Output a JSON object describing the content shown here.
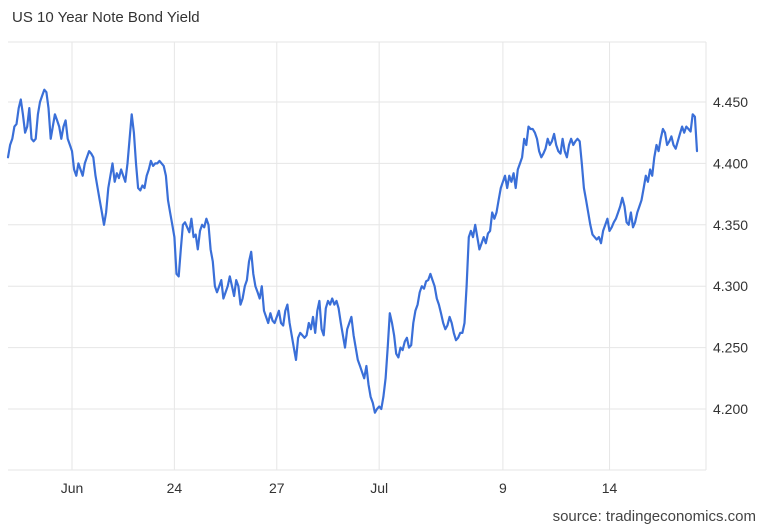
{
  "header": {
    "title": "US 10 Year Note Bond Yield"
  },
  "footer": {
    "source": "source: tradingeconomics.com"
  },
  "chart_data": {
    "type": "line",
    "title": "US 10 Year Note Bond Yield",
    "xlabel": "",
    "ylabel": "",
    "ylim": [
      4.15,
      4.475
    ],
    "yticks": [
      "4.450",
      "4.400",
      "4.350",
      "4.300",
      "4.250",
      "4.200"
    ],
    "ytick_values": [
      4.45,
      4.4,
      4.35,
      4.3,
      4.25,
      4.2
    ],
    "xticks": [
      "Jun",
      "24",
      "27",
      "Jul",
      "9",
      "14"
    ],
    "xtick_index": [
      30,
      78,
      126,
      174,
      232,
      282
    ],
    "grid": true,
    "legend": "none",
    "color": "#3a6fd8",
    "series": [
      {
        "values": [
          4.405,
          4.415,
          4.42,
          4.43,
          4.432,
          4.445,
          4.452,
          4.44,
          4.425,
          4.43,
          4.445,
          4.42,
          4.418,
          4.42,
          4.44,
          4.45,
          4.455,
          4.46,
          4.458,
          4.445,
          4.42,
          4.43,
          4.44,
          4.435,
          4.43,
          4.42,
          4.43,
          4.435,
          4.42,
          4.415,
          4.41,
          4.395,
          4.39,
          4.4,
          4.395,
          4.39,
          4.4,
          4.405,
          4.41,
          4.408,
          4.405,
          4.39,
          4.38,
          4.37,
          4.36,
          4.35,
          4.36,
          4.38,
          4.39,
          4.4,
          4.385,
          4.392,
          4.388,
          4.395,
          4.39,
          4.385,
          4.4,
          4.42,
          4.44,
          4.425,
          4.4,
          4.38,
          4.378,
          4.382,
          4.38,
          4.39,
          4.395,
          4.402,
          4.398,
          4.4,
          4.4,
          4.402,
          4.4,
          4.398,
          4.39,
          4.37,
          4.36,
          4.35,
          4.34,
          4.31,
          4.308,
          4.33,
          4.35,
          4.352,
          4.348,
          4.344,
          4.355,
          4.34,
          4.342,
          4.33,
          4.345,
          4.35,
          4.348,
          4.355,
          4.35,
          4.33,
          4.32,
          4.3,
          4.295,
          4.3,
          4.305,
          4.29,
          4.295,
          4.3,
          4.308,
          4.3,
          4.292,
          4.305,
          4.3,
          4.285,
          4.29,
          4.3,
          4.305,
          4.32,
          4.328,
          4.31,
          4.3,
          4.295,
          4.29,
          4.3,
          4.28,
          4.275,
          4.27,
          4.278,
          4.272,
          4.27,
          4.275,
          4.28,
          4.27,
          4.268,
          4.28,
          4.285,
          4.27,
          4.26,
          4.25,
          4.24,
          4.258,
          4.262,
          4.26,
          4.258,
          4.26,
          4.27,
          4.265,
          4.275,
          4.262,
          4.28,
          4.288,
          4.265,
          4.26,
          4.282,
          4.288,
          4.285,
          4.29,
          4.285,
          4.288,
          4.282,
          4.27,
          4.26,
          4.25,
          4.265,
          4.27,
          4.275,
          4.26,
          4.25,
          4.24,
          4.235,
          4.23,
          4.225,
          4.235,
          4.22,
          4.21,
          4.205,
          4.197,
          4.2,
          4.202,
          4.2,
          4.21,
          4.225,
          4.25,
          4.278,
          4.27,
          4.26,
          4.245,
          4.242,
          4.25,
          4.248,
          4.255,
          4.258,
          4.25,
          4.252,
          4.27,
          4.28,
          4.285,
          4.295,
          4.3,
          4.298,
          4.304,
          4.305,
          4.31,
          4.305,
          4.3,
          4.29,
          4.285,
          4.278,
          4.27,
          4.265,
          4.268,
          4.275,
          4.27,
          4.262,
          4.256,
          4.258,
          4.262,
          4.262,
          4.27,
          4.3,
          4.34,
          4.345,
          4.34,
          4.35,
          4.34,
          4.33,
          4.335,
          4.34,
          4.335,
          4.343,
          4.345,
          4.36,
          4.355,
          4.36,
          4.37,
          4.38,
          4.385,
          4.39,
          4.38,
          4.39,
          4.385,
          4.392,
          4.38,
          4.395,
          4.4,
          4.405,
          4.42,
          4.415,
          4.43,
          4.428,
          4.428,
          4.425,
          4.42,
          4.41,
          4.405,
          4.408,
          4.412,
          4.42,
          4.415,
          4.418,
          4.424,
          4.415,
          4.41,
          4.408,
          4.42,
          4.41,
          4.405,
          4.415,
          4.42,
          4.415,
          4.418,
          4.42,
          4.418,
          4.4,
          4.38,
          4.37,
          4.36,
          4.35,
          4.342,
          4.34,
          4.338,
          4.34,
          4.335,
          4.345,
          4.35,
          4.355,
          4.345,
          4.348,
          4.352,
          4.355,
          4.36,
          4.365,
          4.372,
          4.365,
          4.352,
          4.35,
          4.36,
          4.348,
          4.352,
          4.36,
          4.365,
          4.37,
          4.38,
          4.39,
          4.385,
          4.395,
          4.39,
          4.405,
          4.415,
          4.41,
          4.42,
          4.428,
          4.425,
          4.415,
          4.418,
          4.422,
          4.415,
          4.412,
          4.418,
          4.424,
          4.43,
          4.425,
          4.43,
          4.428,
          4.426,
          4.44,
          4.438,
          4.41
        ]
      }
    ]
  }
}
